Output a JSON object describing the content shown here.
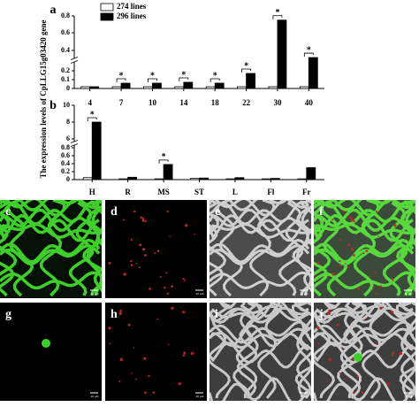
{
  "y_axis_label": "The expression levels of CpLLG15g03420 gene",
  "chart_data": [
    {
      "type": "bar",
      "label": "a",
      "categories": [
        "4",
        "7",
        "10",
        "14",
        "18",
        "22",
        "30",
        "40"
      ],
      "series": [
        {
          "name": "274 lines",
          "color": "#ffffff",
          "values": [
            0.02,
            0.02,
            0.02,
            0.02,
            0.02,
            0.02,
            0.02,
            0.02
          ]
        },
        {
          "name": "296 lines",
          "color": "#000000",
          "values": [
            0.02,
            0.06,
            0.06,
            0.07,
            0.06,
            0.17,
            0.75,
            0.33
          ]
        }
      ],
      "ylim": [
        0,
        0.8
      ],
      "yticks": [
        0.0,
        0.1,
        0.2,
        0.4,
        0.6,
        0.8
      ],
      "annotations": [
        {
          "text": "*",
          "category": "7"
        },
        {
          "text": "*",
          "category": "10"
        },
        {
          "text": "*",
          "category": "14"
        },
        {
          "text": "*",
          "category": "18"
        },
        {
          "text": "*",
          "category": "22"
        },
        {
          "text": "*",
          "category": "30"
        },
        {
          "text": "*",
          "category": "40"
        }
      ],
      "legend": "top-left"
    },
    {
      "type": "bar",
      "label": "b",
      "categories": [
        "H",
        "R",
        "MS",
        "ST",
        "L",
        "Fl",
        "Fr"
      ],
      "series": [
        {
          "name": "274 lines",
          "color": "#ffffff",
          "values": [
            0.05,
            0.02,
            0.02,
            0.03,
            0.02,
            0.02,
            0.02
          ]
        },
        {
          "name": "296 lines",
          "color": "#000000",
          "values": [
            8.0,
            0.06,
            0.38,
            0.04,
            0.05,
            0.03,
            0.3
          ]
        }
      ],
      "ylim": [
        0,
        10
      ],
      "yticks": [
        0.0,
        0.2,
        0.4,
        0.6,
        0.8,
        6,
        8,
        10
      ],
      "annotations": [
        {
          "text": "*",
          "category": "H"
        },
        {
          "text": "*",
          "category": "MS"
        }
      ]
    }
  ],
  "panels": [
    {
      "label": "c"
    },
    {
      "label": "d"
    },
    {
      "label": "e"
    },
    {
      "label": "f"
    },
    {
      "label": "g"
    },
    {
      "label": "h"
    },
    {
      "label": "i"
    },
    {
      "label": "j"
    }
  ],
  "scale_bar": "20 μm"
}
